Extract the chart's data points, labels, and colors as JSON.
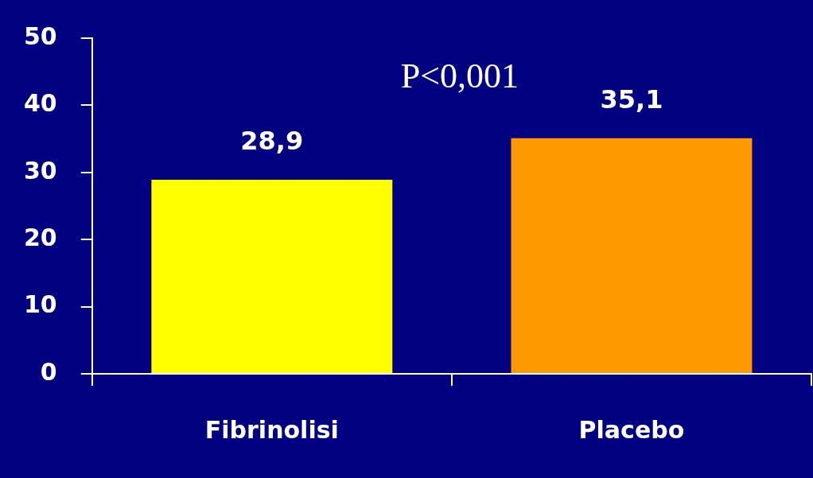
{
  "chart_data": {
    "type": "bar",
    "categories": [
      "Fibrinolisi",
      "Placebo"
    ],
    "values": [
      28.9,
      35.1
    ],
    "colors": [
      "#ffff00",
      "#ff9900"
    ],
    "value_labels": [
      "28,9",
      "35,1"
    ],
    "ylim": [
      0,
      50
    ],
    "yticks": [
      0,
      10,
      20,
      30,
      40,
      50
    ],
    "grid": false,
    "legend": false,
    "annotations": [
      "P<0,001"
    ]
  }
}
